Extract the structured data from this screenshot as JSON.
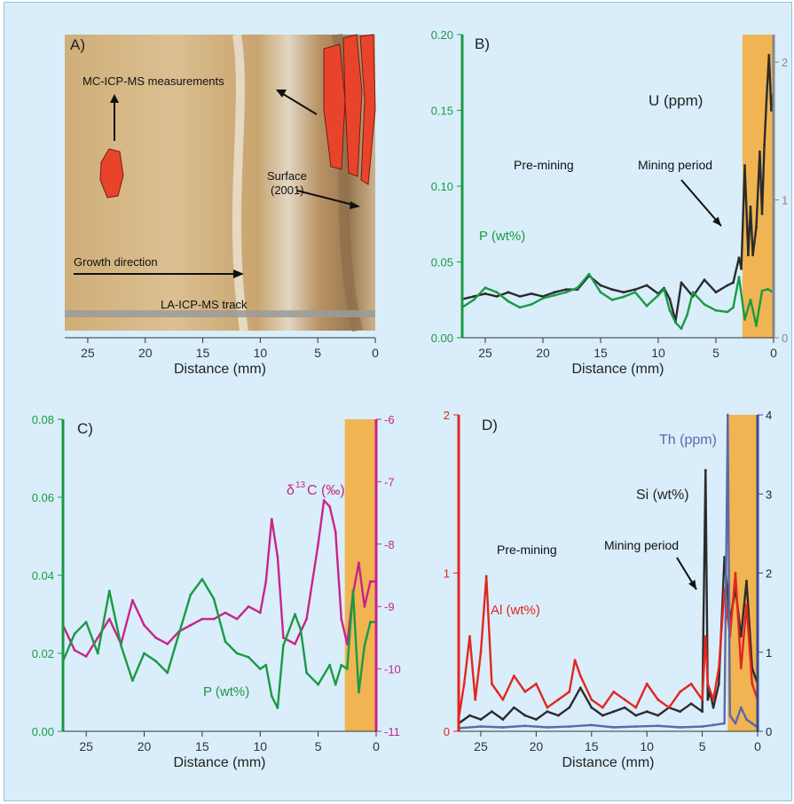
{
  "colors": {
    "background": "#d9eefa",
    "mining_band": "#f0b452",
    "green": "#1a9a44",
    "black": "#2b2b2b",
    "magenta": "#c8248a",
    "red": "#e3261f",
    "blue": "#5a6aa8",
    "photo_tan": "#d8b985",
    "core_mark": "#e8442c"
  },
  "panelA": {
    "label": "A)",
    "mc_label": "MC-ICP-MS measurements",
    "surface_label": "Surface",
    "surface_year": "(2001)",
    "growth_label": "Growth direction",
    "track_label": "LA-ICP-MS track",
    "xlabel": "Distance (mm)",
    "ticks": [
      "25",
      "20",
      "15",
      "10",
      "5",
      "0"
    ]
  },
  "chart_data": [
    {
      "panel": "B)",
      "type": "line",
      "xlabel": "Distance (mm)",
      "x_reversed": true,
      "xlim": [
        27,
        0
      ],
      "x_ticks": [
        25,
        20,
        15,
        10,
        5,
        0
      ],
      "y_left": {
        "lim": [
          0,
          0.2
        ],
        "ticks": [
          "0.00",
          "0.05",
          "0.10",
          "0.15",
          "0.20"
        ]
      },
      "y_right": {
        "lim": [
          0,
          2.2
        ],
        "ticks": [
          "0",
          "1",
          "2"
        ]
      },
      "annotations": {
        "pre": "Pre-mining",
        "mining": "Mining period"
      },
      "mining_band": [
        2.7,
        0
      ],
      "series": [
        {
          "name": "U (ppm)",
          "axis": "right",
          "color": "#2b2b2b",
          "x": [
            27,
            26,
            25,
            24,
            23,
            22,
            21,
            20,
            19,
            18,
            17,
            16,
            15,
            14,
            13,
            12,
            11,
            10,
            9.5,
            9,
            8.5,
            8,
            7,
            6,
            5,
            4,
            3.5,
            3,
            2.8,
            2.5,
            2.2,
            2,
            1.8,
            1.5,
            1.2,
            1,
            0.8,
            0.6,
            0.4,
            0.2,
            0
          ],
          "y": [
            0.28,
            0.3,
            0.32,
            0.3,
            0.33,
            0.3,
            0.32,
            0.3,
            0.33,
            0.35,
            0.35,
            0.45,
            0.38,
            0.35,
            0.33,
            0.35,
            0.38,
            0.32,
            0.36,
            0.28,
            0.12,
            0.4,
            0.3,
            0.42,
            0.33,
            0.38,
            0.4,
            0.58,
            0.5,
            1.25,
            0.6,
            0.95,
            0.6,
            0.8,
            1.35,
            0.9,
            1.4,
            1.75,
            2.05,
            1.65,
            1.8
          ]
        },
        {
          "name": "P (wt%)",
          "axis": "left",
          "color": "#1a9a44",
          "x": [
            27,
            26,
            25,
            24,
            23,
            22,
            21,
            20,
            19,
            18,
            17,
            16,
            15,
            14,
            13,
            12,
            11,
            10,
            9.5,
            9,
            8.5,
            8,
            7.5,
            7,
            6,
            5,
            4,
            3.5,
            3,
            2.5,
            2,
            1.5,
            1,
            0.5,
            0
          ],
          "y": [
            0.02,
            0.025,
            0.033,
            0.03,
            0.024,
            0.02,
            0.022,
            0.026,
            0.028,
            0.03,
            0.033,
            0.042,
            0.03,
            0.025,
            0.027,
            0.03,
            0.021,
            0.028,
            0.032,
            0.018,
            0.01,
            0.006,
            0.015,
            0.03,
            0.022,
            0.018,
            0.017,
            0.02,
            0.04,
            0.012,
            0.025,
            0.008,
            0.031,
            0.032,
            0.03
          ]
        }
      ]
    },
    {
      "panel": "C)",
      "type": "line",
      "xlabel": "Distance (mm)",
      "x_reversed": true,
      "xlim": [
        27,
        0
      ],
      "x_ticks": [
        25,
        20,
        15,
        10,
        5,
        0
      ],
      "y_left": {
        "lim": [
          0,
          0.08
        ],
        "ticks": [
          "0.00",
          "0.02",
          "0.04",
          "0.06",
          "0.08"
        ]
      },
      "y_right": {
        "lim": [
          -11,
          -6
        ],
        "ticks": [
          "-11",
          "-10",
          "-9",
          "-8",
          "-7",
          "-6"
        ]
      },
      "mining_band": [
        2.7,
        0
      ],
      "series": [
        {
          "name": "δ13C (‰)",
          "axis": "right",
          "color": "#c8248a",
          "x": [
            27,
            26,
            25,
            24,
            23,
            22,
            21,
            20,
            19,
            18,
            17,
            16,
            15,
            14,
            13,
            12,
            11,
            10,
            9.5,
            9,
            8.5,
            8,
            7,
            6,
            5,
            4.5,
            4,
            3.5,
            3,
            2.5,
            2,
            1.5,
            1,
            0.5,
            0
          ],
          "y": [
            -9.3,
            -9.7,
            -9.8,
            -9.5,
            -9.2,
            -9.6,
            -8.9,
            -9.3,
            -9.5,
            -9.6,
            -9.4,
            -9.3,
            -9.2,
            -9.2,
            -9.1,
            -9.2,
            -9.0,
            -9.1,
            -8.6,
            -7.6,
            -8.2,
            -9.5,
            -9.6,
            -9.2,
            -8.0,
            -7.3,
            -7.4,
            -7.8,
            -9.2,
            -9.6,
            -8.8,
            -8.3,
            -9.0,
            -8.6,
            -8.6
          ]
        },
        {
          "name": "P (wt%)",
          "axis": "left",
          "color": "#1a9a44",
          "x": [
            27,
            26,
            25,
            24,
            23,
            22,
            21,
            20,
            19,
            18,
            17,
            16,
            15,
            14,
            13,
            12,
            11,
            10,
            9.5,
            9,
            8.5,
            8,
            7,
            6.5,
            6,
            5,
            4,
            3.5,
            3,
            2.5,
            2,
            1.5,
            1,
            0.5,
            0
          ],
          "y": [
            0.018,
            0.025,
            0.028,
            0.02,
            0.036,
            0.022,
            0.013,
            0.02,
            0.018,
            0.015,
            0.025,
            0.035,
            0.039,
            0.034,
            0.023,
            0.02,
            0.019,
            0.016,
            0.017,
            0.009,
            0.006,
            0.022,
            0.03,
            0.026,
            0.015,
            0.012,
            0.017,
            0.012,
            0.017,
            0.016,
            0.036,
            0.01,
            0.022,
            0.028,
            0.028
          ]
        }
      ]
    },
    {
      "panel": "D)",
      "type": "line",
      "xlabel": "Distance (mm)",
      "x_reversed": true,
      "xlim": [
        27,
        0
      ],
      "x_ticks": [
        25,
        20,
        15,
        10,
        5,
        0
      ],
      "y_left": {
        "lim": [
          0,
          2
        ],
        "ticks": [
          "0",
          "1",
          "2"
        ]
      },
      "y_right": {
        "lim": [
          0,
          4
        ],
        "ticks": [
          "0",
          "1",
          "2",
          "3",
          "4"
        ]
      },
      "annotations": {
        "pre": "Pre-mining",
        "mining": "Mining period"
      },
      "mining_band": [
        2.7,
        0
      ],
      "series": [
        {
          "name": "Si (wt%)",
          "axis": "right",
          "color": "#2b2b2b",
          "x": [
            27,
            26,
            25,
            24,
            23,
            22,
            21,
            20,
            19,
            18,
            17,
            16,
            15,
            14,
            13,
            12,
            11,
            10,
            9,
            8,
            7,
            6,
            5,
            4.7,
            4.5,
            4.3,
            4,
            3.5,
            3,
            2.5,
            2,
            1.5,
            1,
            0.5,
            0
          ],
          "y": [
            0.1,
            0.2,
            0.15,
            0.25,
            0.15,
            0.3,
            0.2,
            0.15,
            0.25,
            0.2,
            0.3,
            0.55,
            0.3,
            0.2,
            0.25,
            0.3,
            0.2,
            0.25,
            0.2,
            0.3,
            0.25,
            0.35,
            0.25,
            3.3,
            0.4,
            0.5,
            0.3,
            0.6,
            2.2,
            1.4,
            1.8,
            1.2,
            1.9,
            0.8,
            0.6
          ]
        },
        {
          "name": "Al (wt%)",
          "axis": "left",
          "color": "#e3261f",
          "x": [
            27,
            26.5,
            26,
            25.5,
            25,
            24.5,
            24,
            23.5,
            23,
            22,
            21,
            20,
            19,
            18,
            17,
            16.5,
            16,
            15,
            14,
            13,
            12,
            11,
            10,
            9,
            8,
            7,
            6,
            5,
            4.7,
            4.5,
            4,
            3.5,
            3,
            2.5,
            2,
            1.5,
            1,
            0.5,
            0
          ],
          "y": [
            0.08,
            0.3,
            0.6,
            0.2,
            0.5,
            0.98,
            0.3,
            0.25,
            0.2,
            0.35,
            0.25,
            0.3,
            0.15,
            0.2,
            0.25,
            0.45,
            0.35,
            0.2,
            0.15,
            0.25,
            0.2,
            0.15,
            0.3,
            0.2,
            0.15,
            0.25,
            0.3,
            0.2,
            0.6,
            0.3,
            0.2,
            0.4,
            0.9,
            0.6,
            1.0,
            0.4,
            0.8,
            0.3,
            0.2
          ]
        },
        {
          "name": "Th (ppm)",
          "axis": "right",
          "color": "#5a6aa8",
          "x": [
            27,
            25,
            23,
            21,
            19,
            17,
            15,
            13,
            11,
            9,
            7,
            5,
            4,
            3,
            2.7,
            2.5,
            2,
            1.5,
            1,
            0.5,
            0
          ],
          "y": [
            0.04,
            0.06,
            0.05,
            0.07,
            0.05,
            0.06,
            0.08,
            0.05,
            0.06,
            0.07,
            0.05,
            0.06,
            0.08,
            0.1,
            4.0,
            0.2,
            0.1,
            0.3,
            0.15,
            0.1,
            0.05
          ]
        }
      ]
    }
  ]
}
